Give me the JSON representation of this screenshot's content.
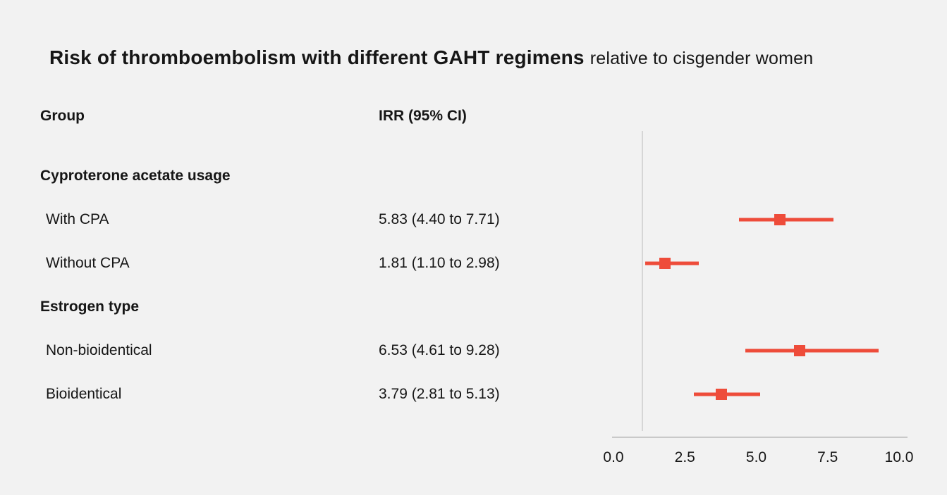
{
  "title": {
    "main": "Risk of thromboembolism with different GAHT regimens",
    "suffix": "relative to cisgender women"
  },
  "columns": {
    "group": "Group",
    "irr": "IRR (95% CI)"
  },
  "colors": {
    "background": "#f2f2f2",
    "marker": "#ee4c3a",
    "axis": "#c9c9c9",
    "reference_line": "#d6d6d6",
    "text": "#161616"
  },
  "chart_data": {
    "type": "forest",
    "title": "Risk of thromboembolism with different GAHT regimens relative to cisgender women",
    "xlabel": "",
    "ylabel": "",
    "xlim": [
      0,
      10
    ],
    "x_ticks": [
      0.0,
      2.5,
      5.0,
      7.5,
      10.0
    ],
    "x_tick_labels": [
      "0.0",
      "2.5",
      "5.0",
      "7.5",
      "10.0"
    ],
    "reference_line": 1.0,
    "grid": false,
    "legend": "none",
    "rows": [
      {
        "kind": "header",
        "label": "Cyproterone acetate usage"
      },
      {
        "kind": "data",
        "label": "With CPA",
        "irr_text": "5.83 (4.40 to 7.71)",
        "estimate": 5.83,
        "ci_low": 4.4,
        "ci_high": 7.71
      },
      {
        "kind": "data",
        "label": "Without CPA",
        "irr_text": "1.81 (1.10 to 2.98)",
        "estimate": 1.81,
        "ci_low": 1.1,
        "ci_high": 2.98
      },
      {
        "kind": "header",
        "label": "Estrogen type"
      },
      {
        "kind": "data",
        "label": "Non-bioidentical",
        "irr_text": "6.53 (4.61 to 9.28)",
        "estimate": 6.53,
        "ci_low": 4.61,
        "ci_high": 9.28
      },
      {
        "kind": "data",
        "label": "Bioidentical",
        "irr_text": "3.79 (2.81 to 5.13)",
        "estimate": 3.79,
        "ci_low": 2.81,
        "ci_high": 5.13
      }
    ]
  }
}
